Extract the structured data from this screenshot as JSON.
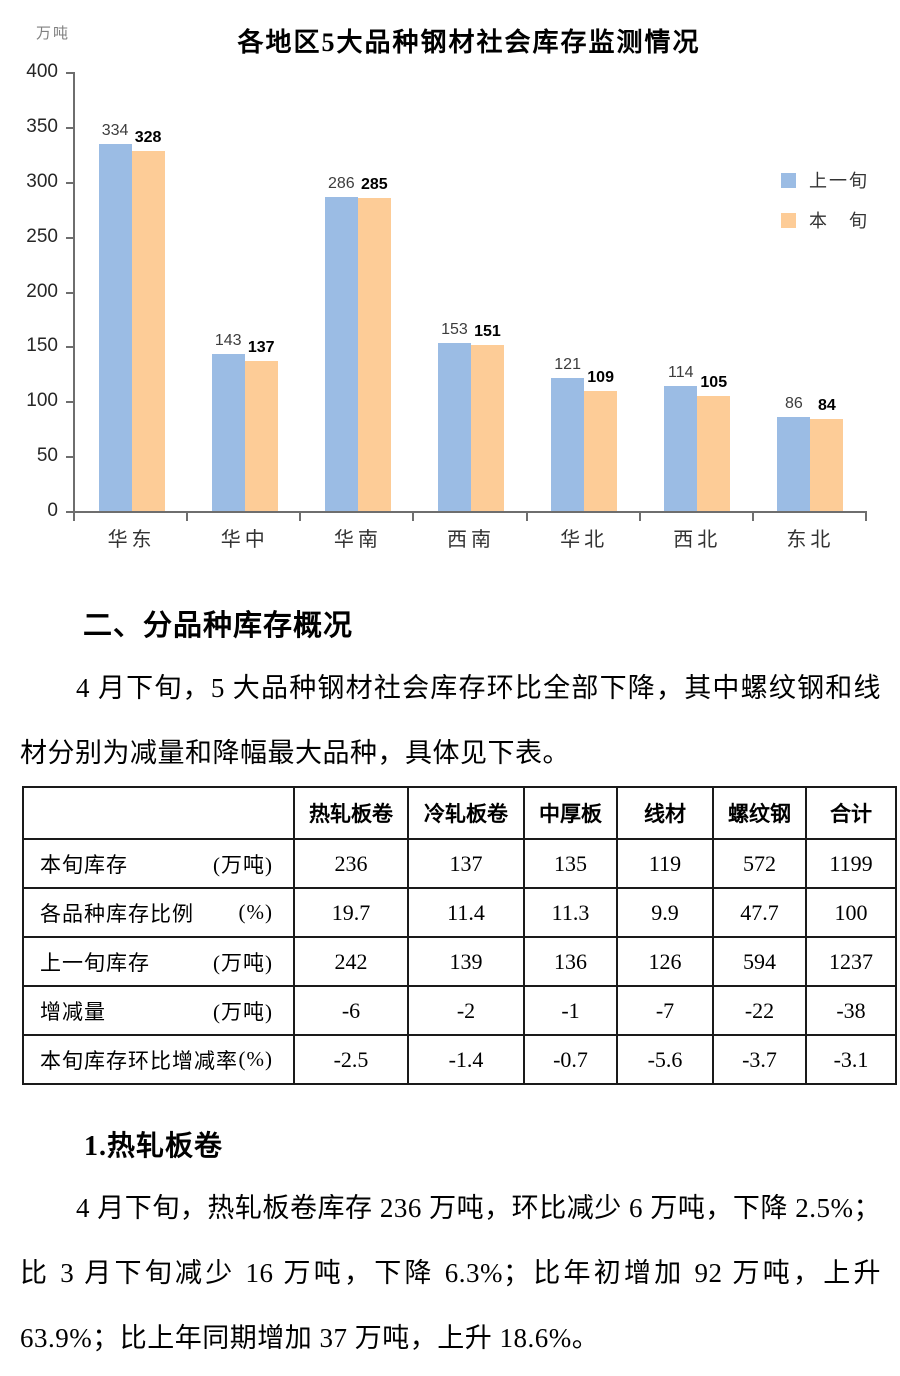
{
  "chart_data": {
    "type": "bar",
    "title": "各地区5大品种钢材社会库存监测情况",
    "ylabel": "万吨",
    "categories": [
      "华东",
      "华中",
      "华南",
      "西南",
      "华北",
      "西北",
      "东北"
    ],
    "series": [
      {
        "name": "上一旬",
        "color": "#9BBCE4",
        "values": [
          334,
          143,
          286,
          153,
          121,
          114,
          86
        ]
      },
      {
        "name": "本旬",
        "color": "#FDCC97",
        "values": [
          328,
          137,
          285,
          151,
          109,
          105,
          84
        ]
      }
    ],
    "legend_labels": [
      "上一旬",
      "本　旬"
    ],
    "ylim": [
      0,
      400
    ],
    "yticks": [
      0,
      50,
      100,
      150,
      200,
      250,
      300,
      350,
      400
    ],
    "legend_position": "right",
    "grid": false
  },
  "section2": {
    "heading": "二、分品种库存概况",
    "paragraph": "4 月下旬，5 大品种钢材社会库存环比全部下降，其中螺纹钢和线材分别为减量和降幅最大品种，具体见下表。"
  },
  "table": {
    "col_headers": [
      "",
      "热轧板卷",
      "冷轧板卷",
      "中厚板",
      "线材",
      "螺纹钢",
      "合计"
    ],
    "rows": [
      {
        "label": "本旬库存",
        "unit": "(万吨)",
        "values": [
          "236",
          "137",
          "135",
          "119",
          "572",
          "1199"
        ]
      },
      {
        "label": "各品种库存比例",
        "unit": "(%)",
        "values": [
          "19.7",
          "11.4",
          "11.3",
          "9.9",
          "47.7",
          "100"
        ]
      },
      {
        "label": "上一旬库存",
        "unit": "(万吨)",
        "values": [
          "242",
          "139",
          "136",
          "126",
          "594",
          "1237"
        ]
      },
      {
        "label": "增减量",
        "unit": "(万吨)",
        "values": [
          "-6",
          "-2",
          "-1",
          "-7",
          "-22",
          "-38"
        ]
      },
      {
        "label": "本旬库存环比增减率",
        "unit": "(%)",
        "values": [
          "-2.5",
          "-1.4",
          "-0.7",
          "-5.6",
          "-3.7",
          "-3.1"
        ]
      }
    ]
  },
  "section3": {
    "heading": "1.热轧板卷",
    "paragraph": "4 月下旬，热轧板卷库存 236 万吨，环比减少 6 万吨，下降 2.5%；比 3 月下旬减少 16 万吨，下降 6.3%；比年初增加 92 万吨，上升 63.9%；比上年同期增加 37 万吨，上升 18.6%。"
  }
}
